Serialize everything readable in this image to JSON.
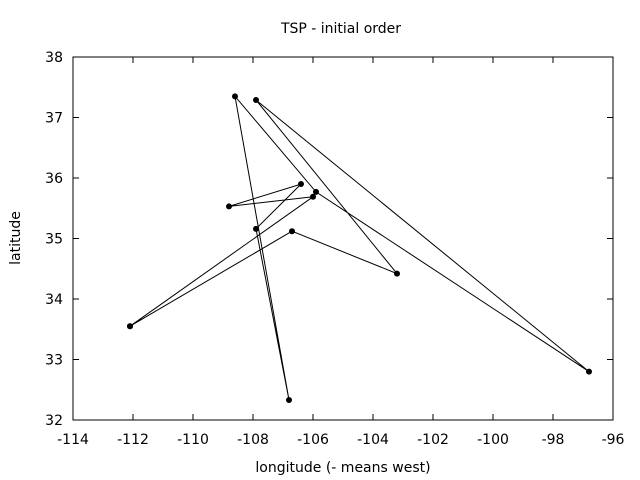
{
  "chart_data": {
    "type": "line",
    "title": "TSP - initial order",
    "xlabel": "longitude (- means west)",
    "ylabel": "latitude",
    "xlim": [
      -114,
      -96
    ],
    "ylim": [
      32,
      38
    ],
    "xticks": [
      -114,
      -112,
      -110,
      -108,
      -106,
      -104,
      -102,
      -100,
      -98,
      -96
    ],
    "yticks": [
      32,
      33,
      34,
      35,
      36,
      37,
      38
    ],
    "grid": false,
    "series": [
      {
        "x": [
          -112.1,
          -106.0,
          -108.8,
          -106.4,
          -107.9,
          -106.8,
          -108.6,
          -105.9,
          -96.8,
          -107.9,
          -103.2,
          -106.7,
          -112.1
        ],
        "y": [
          33.55,
          35.69,
          35.53,
          35.9,
          35.16,
          32.33,
          37.35,
          35.77,
          32.8,
          37.29,
          34.42,
          35.12,
          33.55
        ]
      }
    ]
  }
}
